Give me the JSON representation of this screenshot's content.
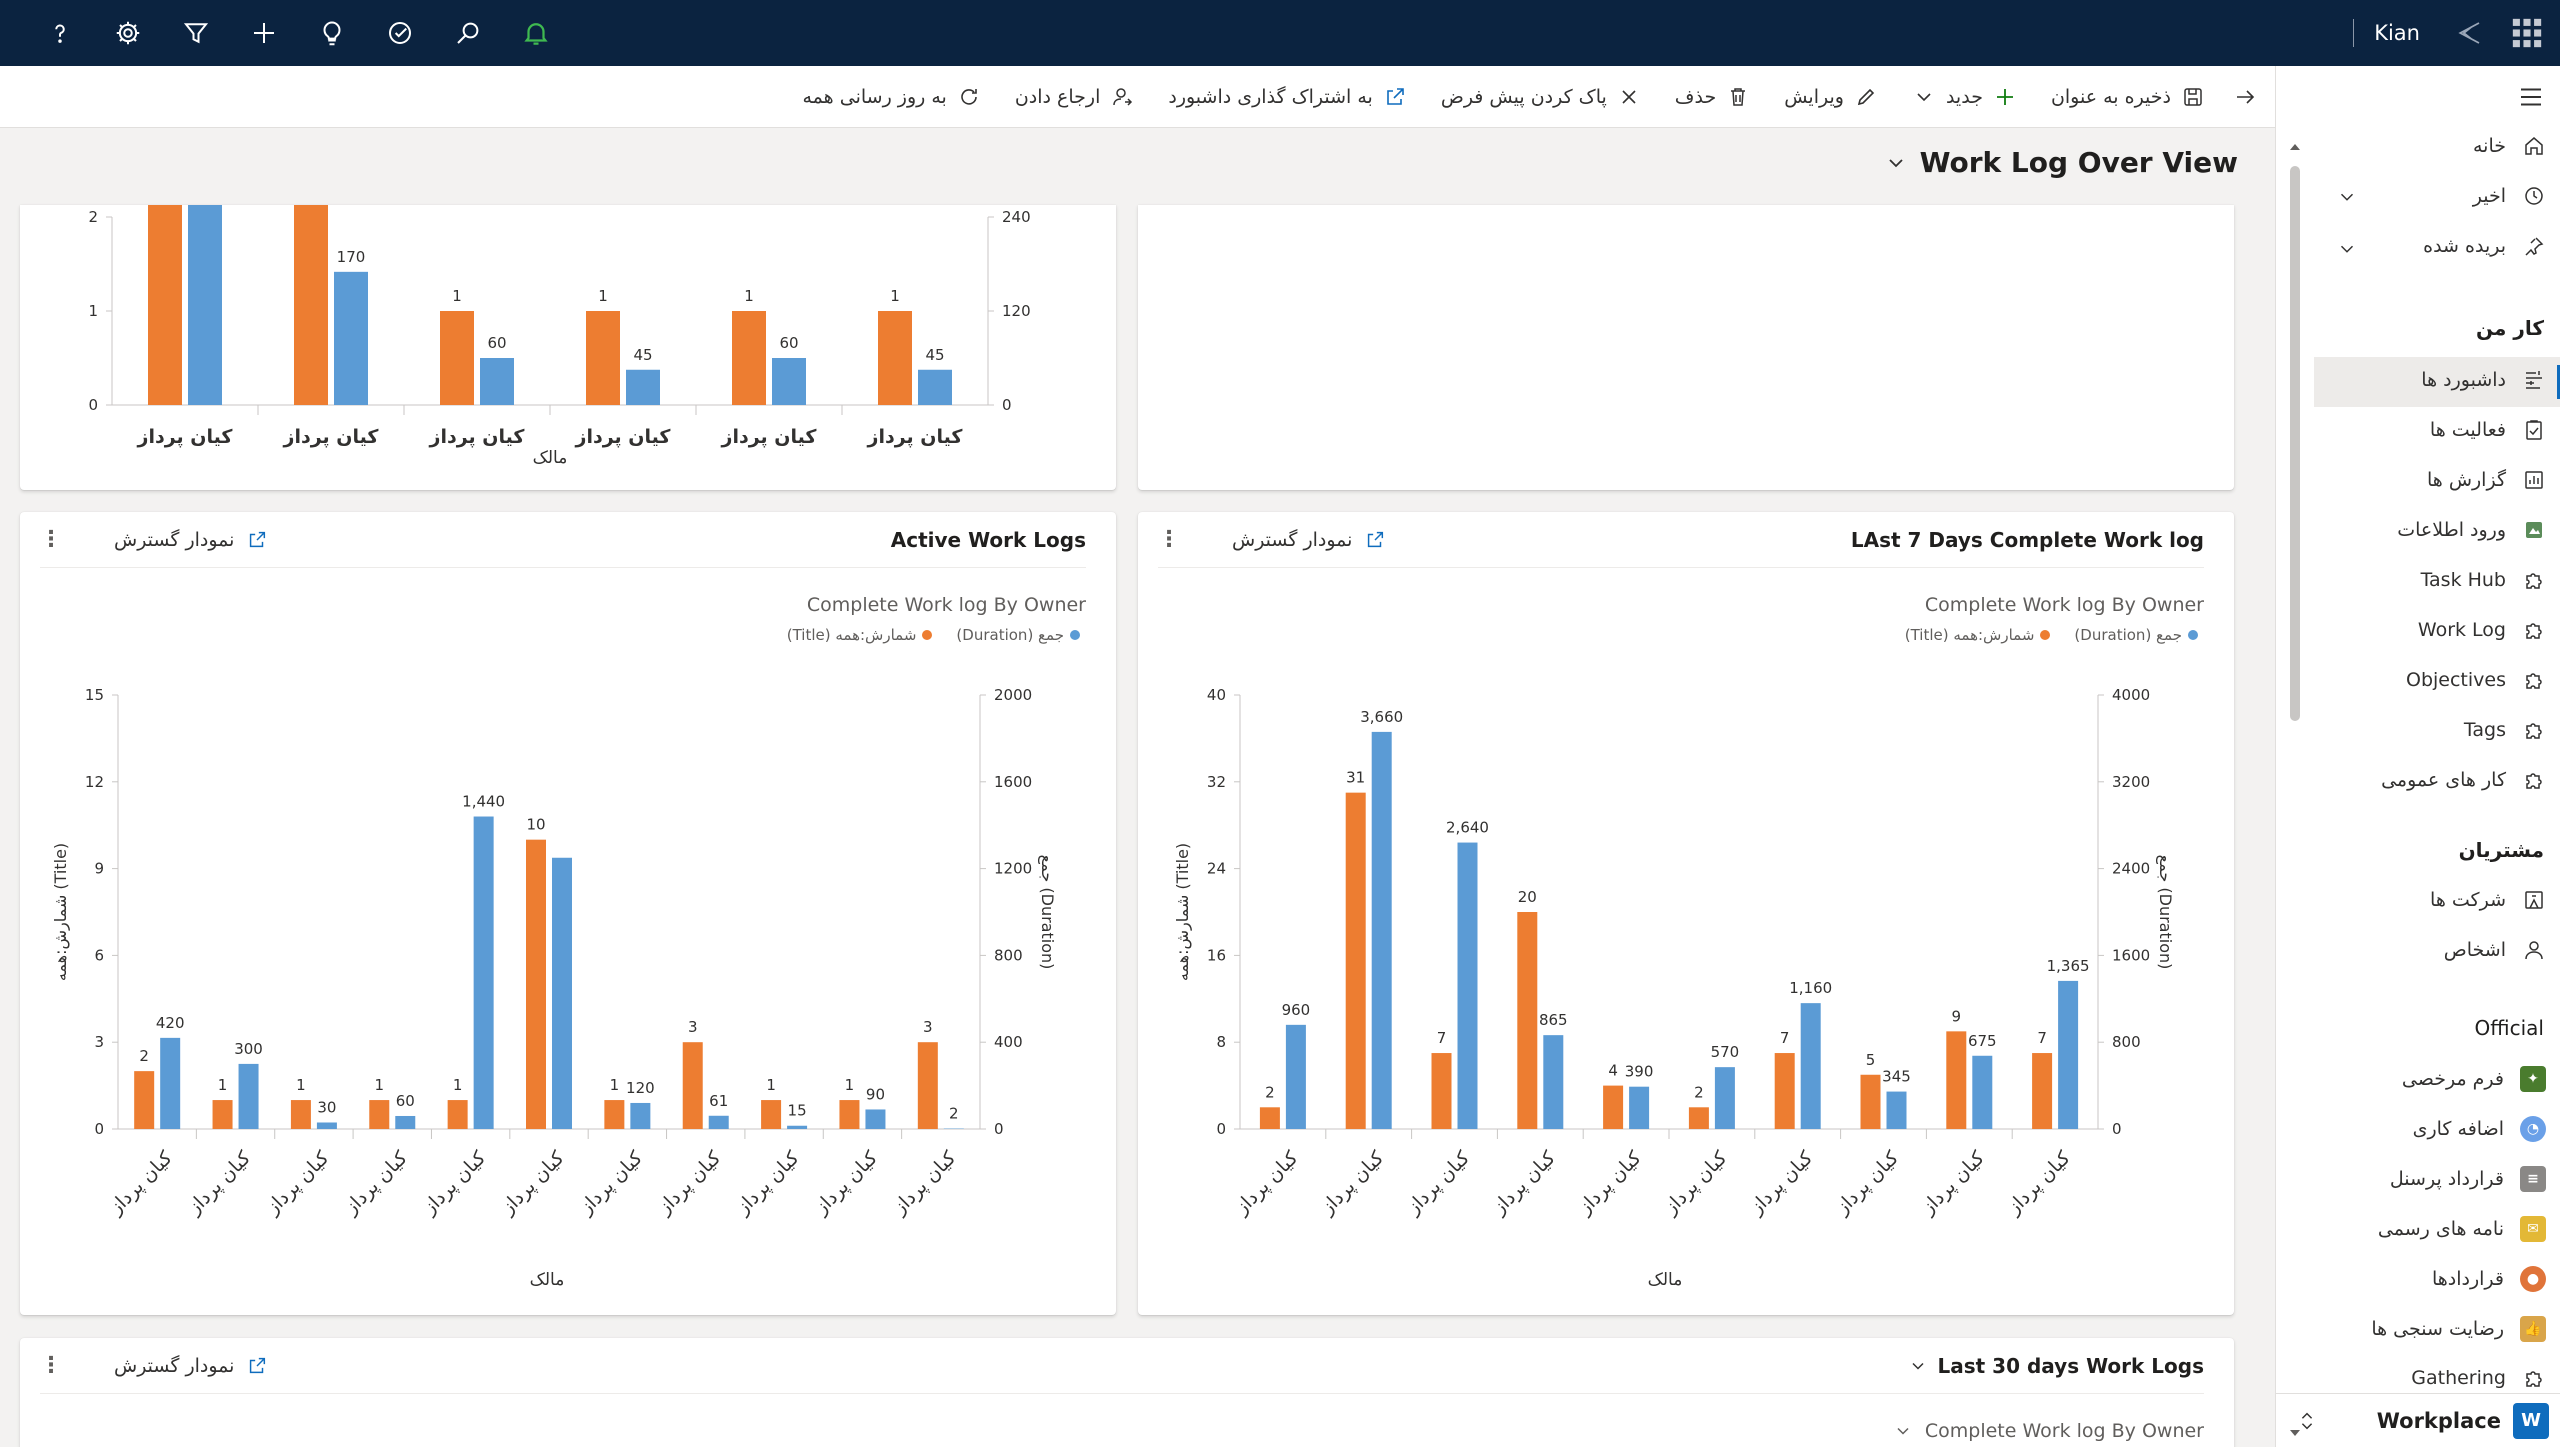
{
  "topbar": {
    "user": "Kian",
    "icons": [
      "help-icon",
      "settings-icon",
      "filter-icon",
      "plus-icon",
      "lightbulb-icon",
      "target-icon",
      "search-icon",
      "bell-icon"
    ]
  },
  "commands": {
    "back": "back-arrow-icon",
    "save_as": "ذخیره به عنوان",
    "new": "جدید",
    "edit": "ویرایش",
    "delete": "حذف",
    "clear_default": "پاک کردن پیش فرض",
    "share": "به اشتراک گذاری داشبورد",
    "assign": "ارجاع دادن",
    "refresh_all": "به روز رسانی همه"
  },
  "dashboard": {
    "title": "Work Log Over View"
  },
  "expand_label": "نمودار گسترش",
  "cards": {
    "top": {
      "xlabel": "مالک"
    },
    "active": {
      "title": "Active Work Logs",
      "subtitle": "Complete Work log By Owner",
      "legend_sum": "جمع (Duration)",
      "legend_count": "شمارش:همه (Title)",
      "ylabel_left": "شمارش:همه (Title)",
      "ylabel_right": "جمع (Duration)",
      "xlabel": "مالک"
    },
    "last7": {
      "title": "LAst 7 Days Complete Work log",
      "subtitle": "Complete Work log By Owner",
      "legend_sum": "جمع (Duration)",
      "legend_count": "شمارش:همه (Title)",
      "ylabel_left": "شمارش:همه (Title)",
      "ylabel_right": "جمع (Duration)",
      "xlabel": "مالک"
    },
    "last30": {
      "title": "Last 30 days Work Logs",
      "subtitle": "Complete Work log By Owner"
    }
  },
  "colors": {
    "count": "#ed7d31",
    "sum": "#5b9bd5",
    "accent": "#0f6cbd",
    "topbar": "#0b2340"
  },
  "chart_data": [
    {
      "type": "bar",
      "name_hint": "top-partial",
      "categories": [
        "کیان پرداز",
        "کیان پرداز",
        "کیان پرداز",
        "کیان پرداز",
        "کیان پرداز",
        "کیان پرداز"
      ],
      "series": [
        {
          "name": "شمارش:همه (Title)",
          "axis": "left",
          "values": [
            null,
            null,
            1,
            1,
            1,
            1
          ],
          "labels": [
            "",
            "",
            "1",
            "1",
            "1",
            "1"
          ]
        },
        {
          "name": "جمع (Duration)",
          "axis": "right",
          "values": [
            null,
            170,
            60,
            45,
            60,
            45
          ],
          "labels": [
            "",
            "170",
            "60",
            "45",
            "60",
            "45"
          ]
        }
      ],
      "ylim_left": [
        0,
        2
      ],
      "ylim_right": [
        0,
        240
      ],
      "yticks_left": [
        "0",
        "1",
        "2"
      ],
      "yticks_right": [
        "0",
        "120",
        "240"
      ],
      "xlabel": "مالک"
    },
    {
      "type": "bar",
      "title": "Complete Work log By Owner",
      "categories": [
        "کیان پرداز",
        "کیان پرداز",
        "کیان پرداز",
        "کیان پرداز",
        "کیان پرداز",
        "کیان پرداز",
        "کیان پرداز",
        "کیان پرداز",
        "کیان پرداز",
        "کیان پرداز",
        "کیان پرداز"
      ],
      "series": [
        {
          "name": "شمارش:همه (Title)",
          "axis": "left",
          "values": [
            2,
            1,
            1,
            1,
            1,
            10,
            1,
            3,
            1,
            1,
            3
          ],
          "labels": [
            "2",
            "1",
            "1",
            "1",
            "1",
            "10",
            "1",
            "3",
            "1",
            "1",
            "3"
          ]
        },
        {
          "name": "جمع (Duration)",
          "axis": "right",
          "values": [
            420,
            300,
            30,
            60,
            1440,
            1250,
            120,
            61,
            15,
            90,
            2
          ],
          "labels": [
            "420",
            "300",
            "30",
            "60",
            "1,440",
            "",
            "120",
            "61",
            "15",
            "90",
            "2"
          ]
        }
      ],
      "ylim_left": [
        0,
        15
      ],
      "ylim_right": [
        0,
        2000
      ],
      "yticks_left": [
        "0",
        "3",
        "6",
        "9",
        "12",
        "15"
      ],
      "yticks_right": [
        "0",
        "400",
        "800",
        "1200",
        "1600",
        "2000"
      ],
      "xlabel": "مالک"
    },
    {
      "type": "bar",
      "title": "Complete Work log By Owner",
      "categories": [
        "کیان پرداز",
        "کیان پرداز",
        "کیان پرداز",
        "کیان پرداز",
        "کیان پرداز",
        "کیان پرداز",
        "کیان پرداز",
        "کیان پرداز",
        "کیان پرداز",
        "کیان پرداز"
      ],
      "series": [
        {
          "name": "شمارش:همه (Title)",
          "axis": "left",
          "values": [
            2,
            31,
            7,
            20,
            4,
            2,
            7,
            5,
            9,
            7
          ],
          "labels": [
            "2",
            "31",
            "7",
            "20",
            "4",
            "2",
            "7",
            "5",
            "9",
            "7"
          ]
        },
        {
          "name": "جمع (Duration)",
          "axis": "right",
          "values": [
            960,
            3660,
            2640,
            865,
            390,
            570,
            1160,
            345,
            675,
            1365
          ],
          "labels": [
            "960",
            "3,660",
            "2,640",
            "865",
            "390",
            "570",
            "1,160",
            "345",
            "675",
            "1,365"
          ]
        }
      ],
      "ylim_left": [
        0,
        40
      ],
      "ylim_right": [
        0,
        4000
      ],
      "yticks_left": [
        "0",
        "8",
        "16",
        "24",
        "32",
        "40"
      ],
      "yticks_right": [
        "0",
        "800",
        "1600",
        "2400",
        "3200",
        "4000"
      ],
      "xlabel": "مالک"
    }
  ],
  "sidebar": {
    "home": "خانه",
    "recent": "اخیر",
    "pinned": "بریده شده",
    "sections": {
      "mywork": "کار من",
      "customers": "مشتریان",
      "official": "Official"
    },
    "mywork_items": [
      "داشبورد ها",
      "فعالیت ها",
      "گزارش ها",
      "ورود اطلاعات",
      "Task Hub",
      "Work Log",
      "Objectives",
      "Tags",
      "کار های عمومی"
    ],
    "customer_items": [
      "شرکت ها",
      "اشخاص"
    ],
    "official_items": [
      "فرم مرخصی",
      "اضافه کاری",
      "قرارداد پرسنل",
      "نامه های رسمی",
      "قراردادها",
      "رضایت سنجی ها",
      "Gathering"
    ],
    "workplace": "Workplace",
    "workplace_badge": "W"
  }
}
